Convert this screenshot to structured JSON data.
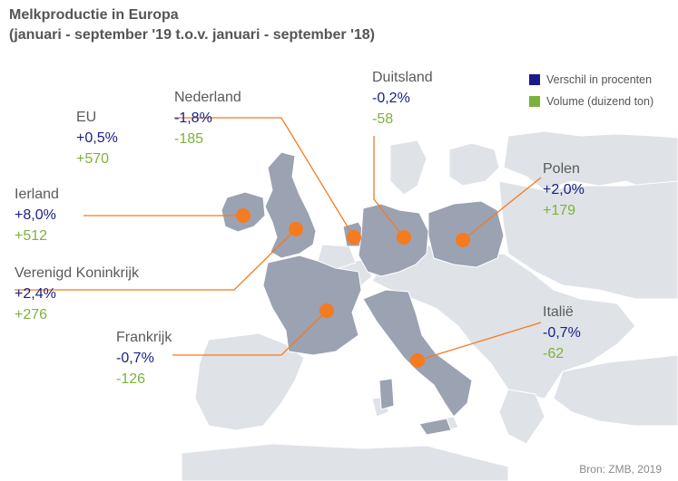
{
  "title": "Melkproductie in Europa",
  "subtitle": "(januari - september '19 t.o.v. januari - september '18)",
  "legend": [
    {
      "label": "Verschil in procenten",
      "color": "#1a1a8c"
    },
    {
      "label": "Volume (duizend ton)",
      "color": "#7cb23b"
    }
  ],
  "colors": {
    "highlight_country": "#9ba2b2",
    "other_land": "#dfe2e7",
    "marker": "#f47b20",
    "leader": "#f47b20",
    "percent_text": "#1a2185",
    "volume_text": "#7cb23b"
  },
  "countries": [
    {
      "id": "eu",
      "name": "EU",
      "pct": "+0,5%",
      "vol": "+570"
    },
    {
      "id": "nederland",
      "name": "Nederland",
      "pct": "-1,8%",
      "vol": "-185"
    },
    {
      "id": "duitsland",
      "name": "Duitsland",
      "pct": "-0,2%",
      "vol": "-58"
    },
    {
      "id": "ierland",
      "name": "Ierland",
      "pct": "+8,0%",
      "vol": "+512"
    },
    {
      "id": "polen",
      "name": "Polen",
      "pct": "+2,0%",
      "vol": "+179"
    },
    {
      "id": "vk",
      "name": "Verenigd Koninkrijk",
      "pct": "+2,4%",
      "vol": "+276"
    },
    {
      "id": "frankrijk",
      "name": "Frankrijk",
      "pct": "-0,7%",
      "vol": "-126"
    },
    {
      "id": "italie",
      "name": "Italië",
      "pct": "-0,7%",
      "vol": "-62"
    }
  ],
  "source": "Bron: ZMB, 2019"
}
